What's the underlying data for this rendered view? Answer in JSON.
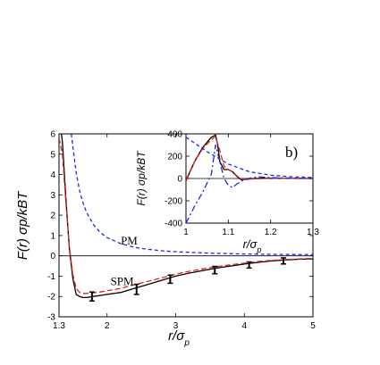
{
  "chart_data": [
    {
      "type": "line",
      "role": "main",
      "xlabel_main": "r/σ",
      "xlabel_sub": "p",
      "ylabel": "F(r) σp/kBT",
      "xlim": [
        1.3,
        5
      ],
      "ylim": [
        -3,
        6
      ],
      "x_tick_labels": [
        "1.3",
        "2",
        "3",
        "4",
        "5"
      ],
      "x_ticks": [
        1.3,
        2,
        3,
        4,
        5
      ],
      "y_tick_labels": [
        "-3",
        "-2",
        "-1",
        "0",
        "1",
        "2",
        "3",
        "4",
        "5",
        "6"
      ],
      "y_ticks": [
        -3,
        -2,
        -1,
        0,
        1,
        2,
        3,
        4,
        5,
        6
      ],
      "annotations": [
        {
          "text": "PM",
          "x": 2.2,
          "y": 0.55
        },
        {
          "text": "SPM",
          "x": 2.05,
          "y": -1.45
        }
      ],
      "series": [
        {
          "style": "solid-black",
          "x": [
            1.3,
            1.35,
            1.4,
            1.45,
            1.5,
            1.55,
            1.6,
            1.65,
            1.7,
            1.8,
            1.9,
            2.0,
            2.2,
            2.4,
            2.6,
            2.8,
            3.0,
            3.2,
            3.4,
            3.6,
            3.8,
            4.0,
            4.2,
            4.4,
            4.6,
            4.8,
            5.0
          ],
          "y": [
            7.0,
            5.6,
            2.8,
            0.4,
            -1.1,
            -1.9,
            -2.0,
            -2.05,
            -2.05,
            -2.0,
            -1.95,
            -1.9,
            -1.8,
            -1.6,
            -1.4,
            -1.2,
            -1.0,
            -0.85,
            -0.72,
            -0.6,
            -0.5,
            -0.4,
            -0.32,
            -0.25,
            -0.2,
            -0.17,
            -0.15
          ]
        },
        {
          "style": "dashed-red",
          "x": [
            1.3,
            1.35,
            1.4,
            1.45,
            1.5,
            1.55,
            1.6,
            1.65,
            1.7,
            1.8,
            1.9,
            2.0,
            2.2,
            2.4,
            2.6,
            2.8,
            3.0,
            3.2,
            3.4,
            3.6,
            3.8,
            4.0,
            4.2,
            4.4,
            4.6,
            4.8,
            5.0
          ],
          "y": [
            5.8,
            5.0,
            2.6,
            0.5,
            -0.9,
            -1.6,
            -1.8,
            -1.85,
            -1.85,
            -1.82,
            -1.78,
            -1.72,
            -1.6,
            -1.42,
            -1.25,
            -1.08,
            -0.9,
            -0.76,
            -0.64,
            -0.53,
            -0.44,
            -0.36,
            -0.28,
            -0.22,
            -0.18,
            -0.15,
            -0.13
          ]
        },
        {
          "style": "dashed-blue",
          "x": [
            1.48,
            1.5,
            1.55,
            1.6,
            1.65,
            1.7,
            1.8,
            1.9,
            2.0,
            2.2,
            2.4,
            2.6,
            2.8,
            3.0,
            3.5,
            4.0,
            4.5,
            5.0
          ],
          "y": [
            6.0,
            5.4,
            4.1,
            3.2,
            2.6,
            2.15,
            1.55,
            1.15,
            0.9,
            0.6,
            0.42,
            0.32,
            0.25,
            0.2,
            0.13,
            0.09,
            0.07,
            0.06
          ]
        }
      ],
      "error_bars": [
        {
          "x": 1.78,
          "y": -2.0,
          "err": 0.22
        },
        {
          "x": 2.43,
          "y": -1.65,
          "err": 0.25
        },
        {
          "x": 2.92,
          "y": -1.15,
          "err": 0.2
        },
        {
          "x": 3.57,
          "y": -0.7,
          "err": 0.18
        },
        {
          "x": 4.07,
          "y": -0.45,
          "err": 0.15
        },
        {
          "x": 4.57,
          "y": -0.25,
          "err": 0.15
        }
      ]
    },
    {
      "type": "line",
      "role": "inset",
      "panel_label": "b)",
      "xlabel_main": "r/σ",
      "xlabel_sub": "p",
      "ylabel": "F(r) σp/kBT",
      "xlim": [
        1.0,
        1.3
      ],
      "ylim": [
        -400,
        400
      ],
      "x_tick_labels": [
        "1",
        "1.1",
        "1.2",
        "1.3"
      ],
      "x_ticks": [
        1.0,
        1.1,
        1.2,
        1.3
      ],
      "y_tick_labels": [
        "-400",
        "-200",
        "0",
        "200",
        "400"
      ],
      "y_ticks": [
        -400,
        -200,
        0,
        200,
        400
      ],
      "series": [
        {
          "style": "solid-black",
          "x": [
            1.0,
            1.02,
            1.04,
            1.06,
            1.07,
            1.075,
            1.08,
            1.09,
            1.1,
            1.11,
            1.12,
            1.13,
            1.15,
            1.18,
            1.2,
            1.25,
            1.3
          ],
          "y": [
            -20,
            150,
            280,
            370,
            390,
            300,
            150,
            80,
            80,
            60,
            20,
            -10,
            -5,
            5,
            2,
            1,
            0
          ]
        },
        {
          "style": "dashed-red",
          "x": [
            1.0,
            1.02,
            1.04,
            1.06,
            1.07,
            1.08,
            1.09,
            1.1,
            1.11,
            1.12,
            1.13,
            1.15,
            1.2,
            1.3
          ],
          "y": [
            -10,
            150,
            270,
            350,
            375,
            250,
            110,
            80,
            60,
            25,
            -5,
            -5,
            2,
            0
          ]
        },
        {
          "style": "dashed-blue",
          "x": [
            1.0,
            1.05,
            1.1,
            1.15,
            1.2,
            1.25,
            1.3
          ],
          "y": [
            370,
            240,
            130,
            60,
            30,
            15,
            10
          ]
        },
        {
          "style": "dashdot-blue",
          "x": [
            1.0,
            1.02,
            1.04,
            1.06,
            1.07,
            1.08,
            1.09,
            1.1,
            1.11,
            1.12,
            1.14,
            1.17,
            1.2,
            1.25,
            1.3
          ],
          "y": [
            -400,
            -250,
            -120,
            40,
            300,
            150,
            0,
            -60,
            -80,
            -50,
            -5,
            15,
            8,
            3,
            0
          ]
        }
      ]
    }
  ],
  "colors": {
    "black": "#000000",
    "red": "#e8201c",
    "blue": "#1f2ad6"
  }
}
